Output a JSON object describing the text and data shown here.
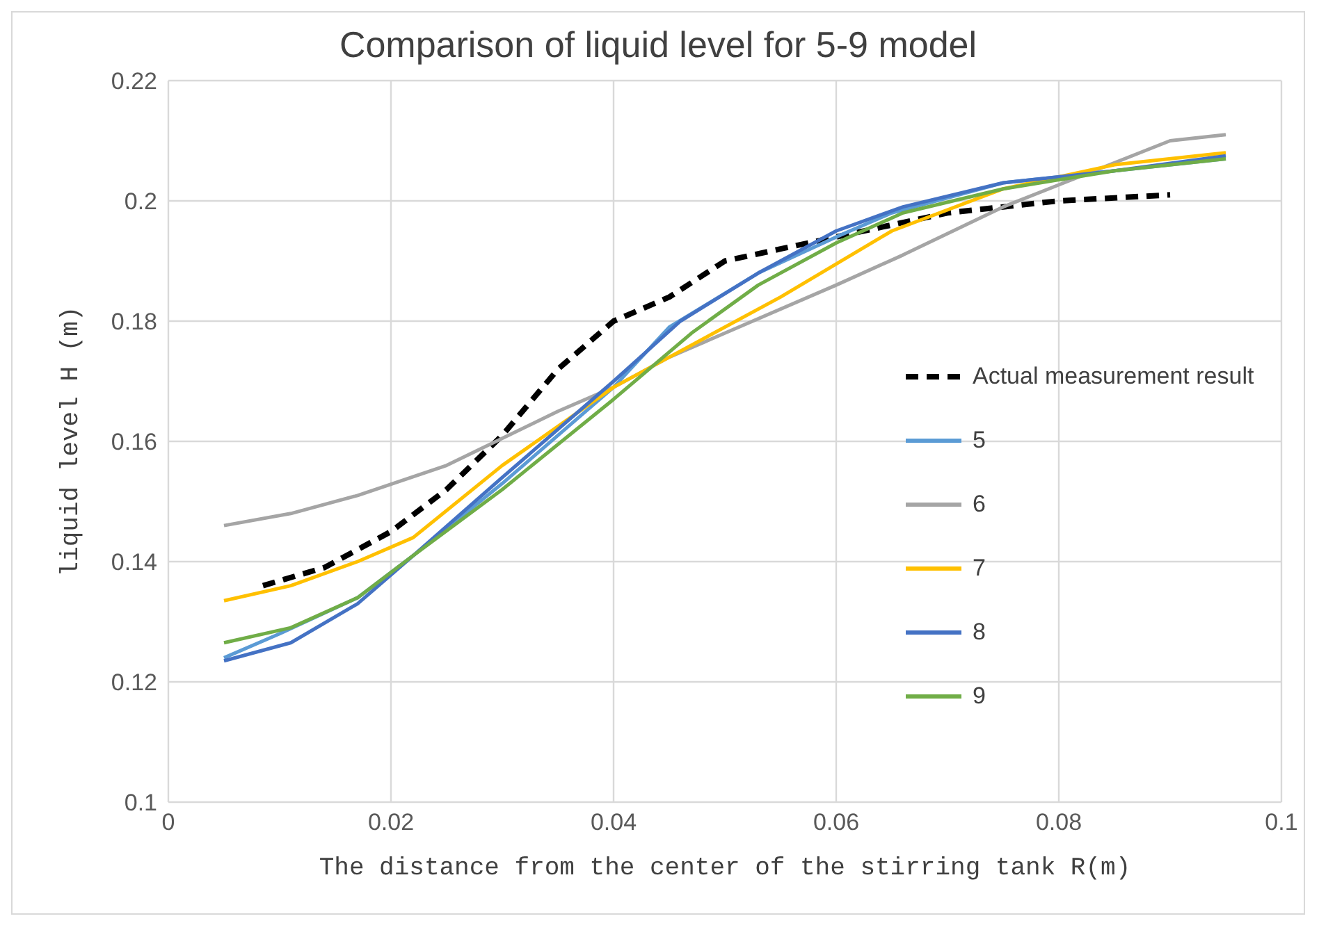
{
  "chart_data": {
    "type": "line",
    "title": "Comparison of liquid level  for 5-9 model",
    "xlabel": "The distance from the center of the stirring tank R(m)",
    "ylabel": "liquid level H (m)",
    "xlim": [
      0,
      0.1
    ],
    "xticks": [
      0,
      0.02,
      0.04,
      0.06,
      0.08,
      0.1
    ],
    "ylim": [
      0.1,
      0.22
    ],
    "yticks": [
      0.1,
      0.12,
      0.14,
      0.16,
      0.18,
      0.2,
      0.22
    ],
    "grid": true,
    "legend": "right",
    "marker": "none",
    "series": [
      {
        "name": "Actual measurement result",
        "color": "#000000",
        "line_style": "dashed",
        "x": [
          0.0085,
          0.014,
          0.02,
          0.025,
          0.03,
          0.035,
          0.04,
          0.045,
          0.05,
          0.055,
          0.06,
          0.065,
          0.07,
          0.075,
          0.08,
          0.09
        ],
        "values": [
          0.136,
          0.139,
          0.145,
          0.152,
          0.161,
          0.172,
          0.18,
          0.184,
          0.19,
          0.192,
          0.194,
          0.196,
          0.198,
          0.199,
          0.2,
          0.201
        ]
      },
      {
        "name": "5",
        "color": "#5b9bd5",
        "line_style": "solid",
        "x": [
          0.005,
          0.01,
          0.017,
          0.022,
          0.03,
          0.04,
          0.045,
          0.053,
          0.06,
          0.065,
          0.075,
          0.085,
          0.095
        ],
        "values": [
          0.124,
          0.128,
          0.134,
          0.141,
          0.153,
          0.169,
          0.179,
          0.188,
          0.194,
          0.198,
          0.203,
          0.205,
          0.207
        ]
      },
      {
        "name": "6",
        "color": "#a5a5a5",
        "line_style": "solid",
        "x": [
          0.005,
          0.011,
          0.017,
          0.025,
          0.035,
          0.04,
          0.045,
          0.05,
          0.06,
          0.066,
          0.075,
          0.09,
          0.095
        ],
        "values": [
          0.146,
          0.148,
          0.151,
          0.156,
          0.165,
          0.169,
          0.174,
          0.178,
          0.186,
          0.191,
          0.199,
          0.21,
          0.211
        ]
      },
      {
        "name": "7",
        "color": "#ffc000",
        "line_style": "solid",
        "x": [
          0.005,
          0.011,
          0.017,
          0.022,
          0.03,
          0.04,
          0.045,
          0.055,
          0.065,
          0.075,
          0.085,
          0.095
        ],
        "values": [
          0.1335,
          0.136,
          0.14,
          0.144,
          0.156,
          0.169,
          0.174,
          0.184,
          0.195,
          0.202,
          0.206,
          0.208
        ]
      },
      {
        "name": "8",
        "color": "#4472c4",
        "line_style": "solid",
        "x": [
          0.005,
          0.011,
          0.017,
          0.022,
          0.03,
          0.04,
          0.046,
          0.053,
          0.06,
          0.066,
          0.075,
          0.085,
          0.095
        ],
        "values": [
          0.1235,
          0.1265,
          0.133,
          0.141,
          0.154,
          0.17,
          0.18,
          0.188,
          0.195,
          0.199,
          0.203,
          0.205,
          0.2075
        ]
      },
      {
        "name": "9",
        "color": "#70ad47",
        "line_style": "solid",
        "x": [
          0.005,
          0.011,
          0.017,
          0.022,
          0.03,
          0.04,
          0.047,
          0.053,
          0.06,
          0.066,
          0.075,
          0.085,
          0.095
        ],
        "values": [
          0.1265,
          0.129,
          0.134,
          0.141,
          0.152,
          0.167,
          0.178,
          0.186,
          0.193,
          0.198,
          0.202,
          0.205,
          0.207
        ]
      }
    ]
  }
}
